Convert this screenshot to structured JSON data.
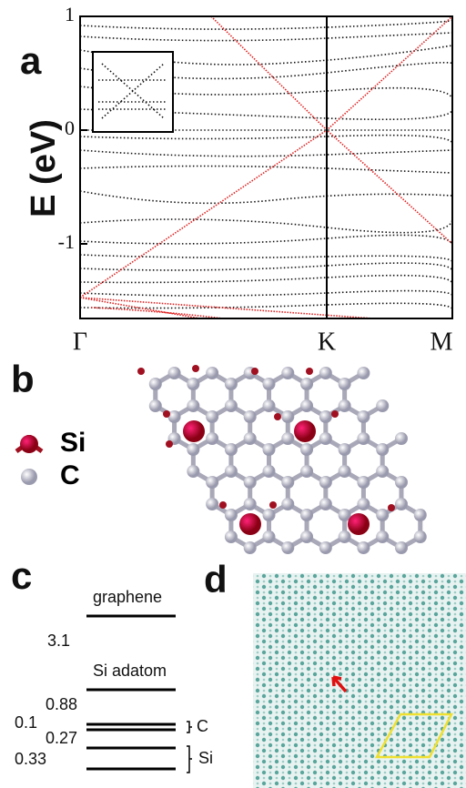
{
  "panel_a": {
    "label": "a",
    "y_axis_label": "E (eV)",
    "yticks": [
      1,
      0,
      -1
    ],
    "xticks": [
      "Γ",
      "K",
      "M"
    ]
  },
  "panel_b": {
    "label": "b",
    "legend": [
      {
        "name": "Si"
      },
      {
        "name": "C"
      }
    ]
  },
  "panel_c": {
    "label": "c",
    "levels": [
      {
        "label": "graphene"
      },
      {
        "label": "Si adatom"
      }
    ],
    "gaps": [
      3.1,
      0.88,
      0.1,
      0.27,
      0.33
    ],
    "brackets": [
      "C",
      "Si"
    ]
  },
  "panel_d": {
    "label": "d"
  }
}
